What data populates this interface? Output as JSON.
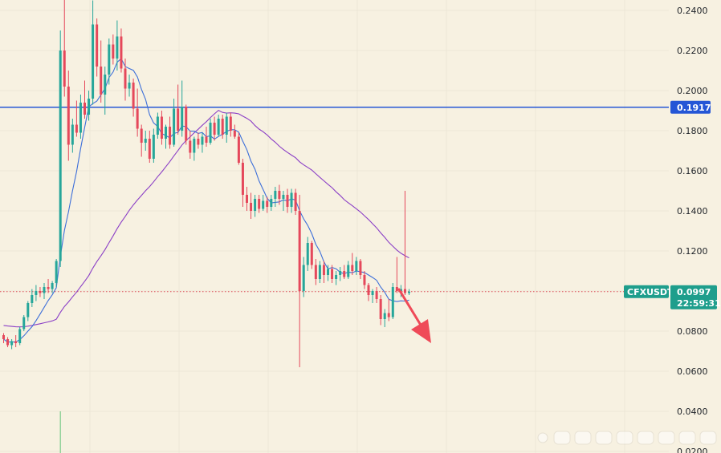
{
  "chart_data": {
    "type": "candlestick",
    "symbol": "CFXUSDT",
    "ylim": [
      0.02,
      0.24
    ],
    "y_ticks": [
      "0.2400",
      "0.2200",
      "0.2000",
      "0.1800",
      "0.1600",
      "0.1400",
      "0.1200",
      "0.1000",
      "0.0800",
      "0.0600",
      "0.0400",
      "0.0200"
    ],
    "grid": true,
    "colors": {
      "background": "#f7f1e1",
      "grid": "#ece6d6",
      "up": "#26a69a",
      "down": "#e5485b",
      "ma_fast": "#3d6fd9",
      "ma_slow": "#8b3fc6",
      "hline": "#2556d6",
      "arrow": "#ef4a58",
      "badge_level": "#2556d6",
      "badge_symbol": "#1e9e8c",
      "price_line": "#e0505b"
    },
    "horizontal_line": {
      "value": 0.1917,
      "label": "0.1917"
    },
    "last_price": {
      "value": 0.0997,
      "label": "0.0997",
      "countdown": "22:59:31",
      "symbol_label": "CFXUSDT"
    },
    "candles": [
      [
        0.078,
        0.079,
        0.074,
        0.076
      ],
      [
        0.076,
        0.077,
        0.072,
        0.073
      ],
      [
        0.073,
        0.076,
        0.071,
        0.075
      ],
      [
        0.075,
        0.078,
        0.072,
        0.074
      ],
      [
        0.074,
        0.082,
        0.073,
        0.081
      ],
      [
        0.081,
        0.088,
        0.08,
        0.087
      ],
      [
        0.087,
        0.095,
        0.085,
        0.094
      ],
      [
        0.094,
        0.101,
        0.092,
        0.098
      ],
      [
        0.098,
        0.103,
        0.095,
        0.1
      ],
      [
        0.1,
        0.102,
        0.097,
        0.099
      ],
      [
        0.099,
        0.104,
        0.096,
        0.102
      ],
      [
        0.102,
        0.106,
        0.099,
        0.101
      ],
      [
        0.101,
        0.105,
        0.099,
        0.104
      ],
      [
        0.104,
        0.116,
        0.102,
        0.115
      ],
      [
        0.115,
        0.23,
        0.112,
        0.22
      ],
      [
        0.22,
        0.248,
        0.197,
        0.202
      ],
      [
        0.202,
        0.21,
        0.165,
        0.173
      ],
      [
        0.173,
        0.186,
        0.169,
        0.183
      ],
      [
        0.183,
        0.195,
        0.177,
        0.179
      ],
      [
        0.179,
        0.198,
        0.176,
        0.194
      ],
      [
        0.194,
        0.205,
        0.186,
        0.188
      ],
      [
        0.188,
        0.2,
        0.185,
        0.196
      ],
      [
        0.196,
        0.245,
        0.193,
        0.233
      ],
      [
        0.233,
        0.236,
        0.207,
        0.212
      ],
      [
        0.212,
        0.225,
        0.194,
        0.198
      ],
      [
        0.198,
        0.212,
        0.188,
        0.208
      ],
      [
        0.208,
        0.226,
        0.203,
        0.223
      ],
      [
        0.223,
        0.228,
        0.213,
        0.216
      ],
      [
        0.216,
        0.235,
        0.21,
        0.227
      ],
      [
        0.227,
        0.231,
        0.209,
        0.211
      ],
      [
        0.211,
        0.216,
        0.195,
        0.201
      ],
      [
        0.201,
        0.208,
        0.197,
        0.204
      ],
      [
        0.204,
        0.206,
        0.187,
        0.191
      ],
      [
        0.191,
        0.201,
        0.177,
        0.181
      ],
      [
        0.181,
        0.183,
        0.167,
        0.174
      ],
      [
        0.174,
        0.18,
        0.17,
        0.176
      ],
      [
        0.176,
        0.18,
        0.164,
        0.166
      ],
      [
        0.166,
        0.181,
        0.164,
        0.178
      ],
      [
        0.178,
        0.189,
        0.176,
        0.187
      ],
      [
        0.187,
        0.19,
        0.173,
        0.176
      ],
      [
        0.176,
        0.183,
        0.171,
        0.182
      ],
      [
        0.182,
        0.187,
        0.171,
        0.173
      ],
      [
        0.173,
        0.196,
        0.172,
        0.191
      ],
      [
        0.191,
        0.203,
        0.178,
        0.18
      ],
      [
        0.18,
        0.205,
        0.177,
        0.192
      ],
      [
        0.192,
        0.193,
        0.173,
        0.175
      ],
      [
        0.175,
        0.18,
        0.166,
        0.169
      ],
      [
        0.169,
        0.177,
        0.165,
        0.176
      ],
      [
        0.176,
        0.179,
        0.171,
        0.173
      ],
      [
        0.173,
        0.179,
        0.169,
        0.177
      ],
      [
        0.177,
        0.182,
        0.172,
        0.174
      ],
      [
        0.174,
        0.186,
        0.173,
        0.184
      ],
      [
        0.184,
        0.187,
        0.175,
        0.178
      ],
      [
        0.178,
        0.188,
        0.177,
        0.186
      ],
      [
        0.186,
        0.188,
        0.176,
        0.178
      ],
      [
        0.178,
        0.189,
        0.174,
        0.187
      ],
      [
        0.187,
        0.189,
        0.177,
        0.18
      ],
      [
        0.18,
        0.183,
        0.176,
        0.177
      ],
      [
        0.177,
        0.179,
        0.163,
        0.164
      ],
      [
        0.164,
        0.166,
        0.142,
        0.148
      ],
      [
        0.148,
        0.152,
        0.14,
        0.144
      ],
      [
        0.144,
        0.149,
        0.136,
        0.14
      ],
      [
        0.14,
        0.148,
        0.137,
        0.146
      ],
      [
        0.146,
        0.148,
        0.139,
        0.141
      ],
      [
        0.141,
        0.148,
        0.14,
        0.145
      ],
      [
        0.145,
        0.147,
        0.139,
        0.142
      ],
      [
        0.142,
        0.148,
        0.14,
        0.146
      ],
      [
        0.146,
        0.152,
        0.142,
        0.15
      ],
      [
        0.15,
        0.153,
        0.143,
        0.146
      ],
      [
        0.146,
        0.15,
        0.14,
        0.148
      ],
      [
        0.148,
        0.151,
        0.139,
        0.142
      ],
      [
        0.142,
        0.151,
        0.139,
        0.149
      ],
      [
        0.149,
        0.151,
        0.138,
        0.14
      ],
      [
        0.14,
        0.148,
        0.062,
        0.1
      ],
      [
        0.1,
        0.117,
        0.097,
        0.113
      ],
      [
        0.113,
        0.127,
        0.11,
        0.124
      ],
      [
        0.124,
        0.125,
        0.111,
        0.113
      ],
      [
        0.113,
        0.116,
        0.103,
        0.106
      ],
      [
        0.106,
        0.115,
        0.104,
        0.113
      ],
      [
        0.113,
        0.115,
        0.104,
        0.108
      ],
      [
        0.108,
        0.113,
        0.105,
        0.111
      ],
      [
        0.111,
        0.113,
        0.104,
        0.106
      ],
      [
        0.106,
        0.11,
        0.103,
        0.108
      ],
      [
        0.108,
        0.112,
        0.105,
        0.11
      ],
      [
        0.11,
        0.113,
        0.106,
        0.107
      ],
      [
        0.107,
        0.115,
        0.106,
        0.113
      ],
      [
        0.113,
        0.119,
        0.108,
        0.11
      ],
      [
        0.11,
        0.117,
        0.108,
        0.115
      ],
      [
        0.115,
        0.116,
        0.106,
        0.108
      ],
      [
        0.108,
        0.11,
        0.101,
        0.103
      ],
      [
        0.103,
        0.104,
        0.095,
        0.098
      ],
      [
        0.098,
        0.101,
        0.094,
        0.1
      ],
      [
        0.1,
        0.102,
        0.094,
        0.096
      ],
      [
        0.096,
        0.098,
        0.083,
        0.086
      ],
      [
        0.086,
        0.091,
        0.082,
        0.089
      ],
      [
        0.089,
        0.096,
        0.085,
        0.087
      ],
      [
        0.087,
        0.104,
        0.086,
        0.102
      ],
      [
        0.102,
        0.117,
        0.099,
        0.1
      ],
      [
        0.1,
        0.103,
        0.097,
        0.101
      ],
      [
        0.101,
        0.15,
        0.098,
        0.099
      ],
      [
        0.099,
        0.101,
        0.098,
        0.0997
      ]
    ],
    "volume_spike_candle": 14
  }
}
